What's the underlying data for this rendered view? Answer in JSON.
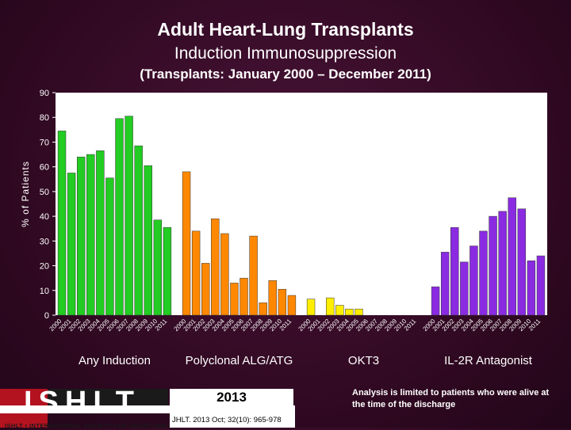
{
  "header": {
    "title": "Adult Heart-Lung Transplants",
    "subtitle": "Induction Immunosuppression",
    "period": "(Transplants: January 2000 – December 2011)"
  },
  "chart_data": {
    "type": "bar",
    "ylabel": "% of Patients",
    "ylim": [
      0,
      90
    ],
    "yticks": [
      0,
      10,
      20,
      30,
      40,
      50,
      60,
      70,
      80,
      90
    ],
    "grid": false,
    "groups": [
      {
        "name": "Any Induction",
        "color": "#22cc22",
        "categories": [
          "2000",
          "2001",
          "2002",
          "2003",
          "2004",
          "2005",
          "2006",
          "2007",
          "2008",
          "2009",
          "2010",
          "2011"
        ],
        "values": [
          74.5,
          57.5,
          64,
          65,
          66.5,
          55.5,
          79.5,
          80.5,
          68.5,
          60.5,
          38.5,
          35.5
        ]
      },
      {
        "name": "Polyclonal ALG/ATG",
        "color": "#ff8800",
        "categories": [
          "2000",
          "2001",
          "2002",
          "2003",
          "2004",
          "2005",
          "2006",
          "2007",
          "2008",
          "2009",
          "2010",
          "2011"
        ],
        "values": [
          58,
          34,
          21,
          39,
          33,
          13,
          15,
          32,
          5,
          14,
          10.5,
          8
        ]
      },
      {
        "name": "OKT3",
        "color": "#ffee00",
        "categories": [
          "2000",
          "2001",
          "2002",
          "2003",
          "2004",
          "2005",
          "2006",
          "2007",
          "2008",
          "2009",
          "2010",
          "2011"
        ],
        "values": [
          6.5,
          0,
          7,
          4,
          2.5,
          2.5,
          0,
          0,
          0,
          0,
          0,
          0
        ]
      },
      {
        "name": "IL-2R Antagonist",
        "color": "#8a2be2",
        "categories": [
          "2000",
          "2001",
          "2002",
          "2003",
          "2004",
          "2005",
          "2006",
          "2007",
          "2008",
          "2009",
          "2010",
          "2011"
        ],
        "values": [
          11.5,
          25.5,
          35.5,
          21.5,
          28,
          34,
          40,
          42,
          47.5,
          43,
          22,
          24
        ]
      }
    ]
  },
  "footer": {
    "logo_text": "ISHLT",
    "logo_tagline": "ISHLT • INTERNATIONAL SOCIETY FOR HEART AND LUNG TRANSPLANTATION",
    "year": "2013",
    "citation": "JHLT. 2013 Oct; 32(10): 965-978",
    "note": "Analysis is limited to patients who were alive at the time of the discharge"
  }
}
